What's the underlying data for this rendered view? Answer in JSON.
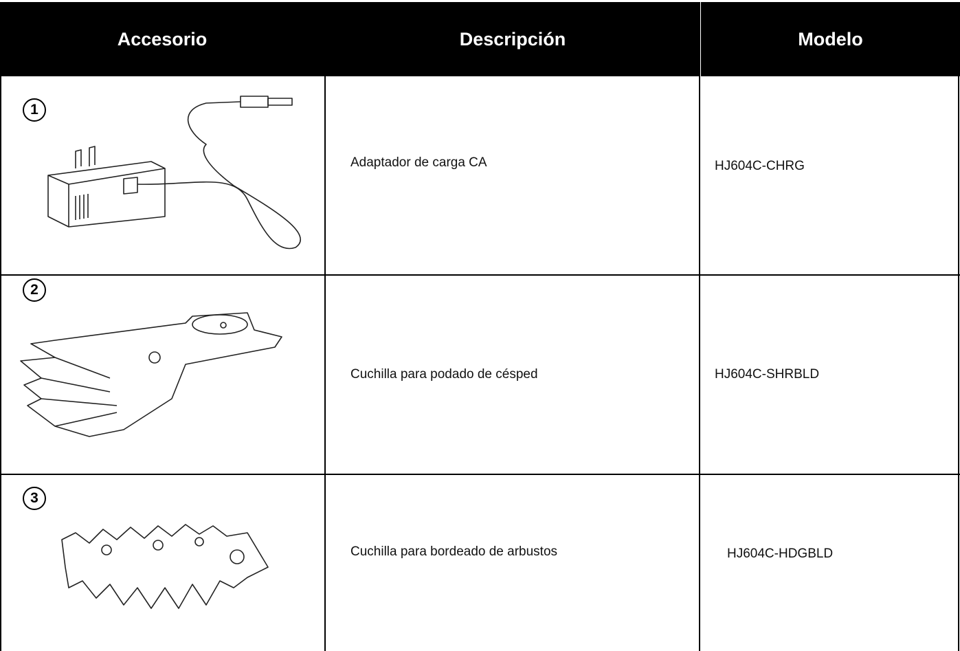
{
  "table": {
    "header": [
      "Accesorio",
      "Descripción",
      "Modelo"
    ],
    "rows": [
      {
        "number": "1",
        "description": "Adaptador de carga CA",
        "model": "HJ604C-CHRG"
      },
      {
        "number": "2",
        "description": "Cuchilla para podado de césped",
        "model": "HJ604C-SHRBLD"
      },
      {
        "number": "3",
        "description": "Cuchilla para bordeado de arbustos",
        "model": "HJ604C-HDGBLD"
      }
    ]
  }
}
